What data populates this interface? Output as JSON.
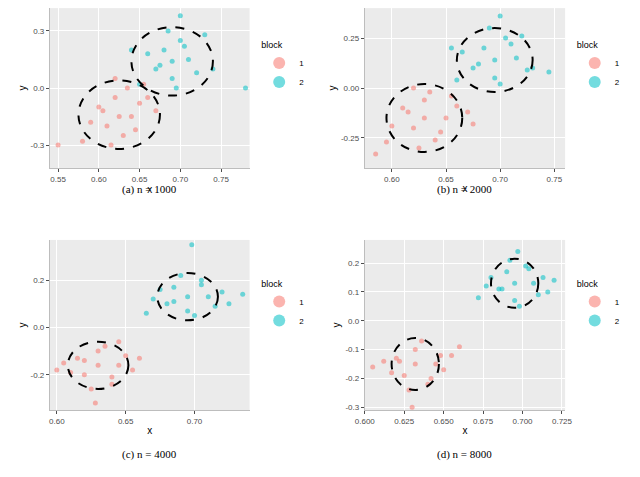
{
  "chart_data": [
    {
      "type": "scatter",
      "title": "(a) n = 1000",
      "x_label": "x",
      "y_label": "y",
      "legend_title": "block",
      "legend": "right",
      "grid": true,
      "xlim": [
        0.54,
        0.785
      ],
      "xticks": [
        0.55,
        {
          "value": 0.6,
          "label": "0.60"
        },
        0.65,
        {
          "value": 0.7,
          "label": "0.70"
        },
        0.75
      ],
      "ylim": [
        -0.42,
        0.42
      ],
      "yticks": [
        -0.3,
        {
          "value": 0,
          "label": "0.0"
        },
        0.3
      ],
      "series": [
        {
          "name": "1",
          "color": "#F8766D",
          "x": [
            0.6,
            0.61,
            0.62,
            0.63,
            0.64,
            0.65,
            0.59,
            0.615,
            0.635,
            0.645,
            0.605,
            0.625,
            0.655,
            0.58,
            0.66,
            0.62,
            0.55,
            0.67
          ],
          "y": [
            -0.1,
            -0.2,
            -0.05,
            -0.25,
            -0.15,
            -0.08,
            -0.18,
            -0.3,
            0.0,
            -0.22,
            -0.12,
            -0.15,
            0.02,
            -0.28,
            -0.05,
            0.05,
            -0.3,
            -0.12
          ]
        },
        {
          "name": "2",
          "color": "#00BFC4",
          "x": [
            0.67,
            0.68,
            0.69,
            0.7,
            0.71,
            0.72,
            0.66,
            0.685,
            0.695,
            0.705,
            0.675,
            0.69,
            0.73,
            0.65,
            0.74,
            0.7,
            0.78,
            0.64
          ],
          "y": [
            0.1,
            0.2,
            0.05,
            0.25,
            0.15,
            0.08,
            0.18,
            0.3,
            0.0,
            0.22,
            0.12,
            0.14,
            0.28,
            0.02,
            0.1,
            0.38,
            0.0,
            0.2
          ]
        }
      ],
      "ellipses": [
        {
          "cx": 0.625,
          "cy": -0.14,
          "rx": 0.05,
          "ry": 0.18,
          "line_style": "dash"
        },
        {
          "cx": 0.69,
          "cy": 0.14,
          "rx": 0.05,
          "ry": 0.18,
          "line_style": "dash"
        }
      ]
    },
    {
      "type": "scatter",
      "title": "(b) n = 2000",
      "x_label": "x",
      "y_label": "y",
      "legend_title": "block",
      "legend": "right",
      "grid": true,
      "xlim": [
        0.575,
        0.76
      ],
      "xticks": [
        {
          "value": 0.6,
          "label": "0.60"
        },
        0.65,
        {
          "value": 0.7,
          "label": "0.70"
        },
        0.75
      ],
      "ylim": [
        -0.4,
        0.4
      ],
      "yticks": [
        -0.25,
        {
          "value": 0,
          "label": "0.00"
        },
        0.25
      ],
      "series": [
        {
          "name": "1",
          "color": "#F8766D",
          "x": [
            0.61,
            0.62,
            0.63,
            0.64,
            0.65,
            0.66,
            0.6,
            0.625,
            0.635,
            0.645,
            0.615,
            0.63,
            0.655,
            0.595,
            0.67,
            0.62,
            0.585,
            0.675
          ],
          "y": [
            -0.1,
            -0.2,
            -0.06,
            -0.26,
            -0.15,
            -0.09,
            -0.19,
            -0.3,
            -0.02,
            -0.22,
            -0.12,
            -0.15,
            -0.04,
            -0.27,
            -0.12,
            0.0,
            -0.33,
            -0.18
          ]
        },
        {
          "name": "2",
          "color": "#00BFC4",
          "x": [
            0.675,
            0.685,
            0.695,
            0.705,
            0.715,
            0.725,
            0.665,
            0.69,
            0.7,
            0.71,
            0.68,
            0.695,
            0.72,
            0.66,
            0.73,
            0.7,
            0.745,
            0.655
          ],
          "y": [
            0.1,
            0.2,
            0.05,
            0.25,
            0.15,
            0.09,
            0.18,
            0.3,
            0.02,
            0.22,
            0.12,
            0.14,
            0.26,
            0.04,
            0.1,
            0.36,
            0.08,
            0.2
          ]
        }
      ],
      "ellipses": [
        {
          "cx": 0.63,
          "cy": -0.15,
          "rx": 0.035,
          "ry": 0.17,
          "line_style": "dash"
        },
        {
          "cx": 0.695,
          "cy": 0.14,
          "rx": 0.035,
          "ry": 0.16,
          "line_style": "dash"
        }
      ]
    },
    {
      "type": "scatter",
      "title": "(c) n = 4000",
      "x_label": "x",
      "y_label": "y",
      "legend_title": "block",
      "legend": "right",
      "grid": true,
      "xlim": [
        0.595,
        0.74
      ],
      "xticks": [
        {
          "value": 0.6,
          "label": "0.60"
        },
        0.65,
        {
          "value": 0.7,
          "label": "0.70"
        }
      ],
      "ylim": [
        -0.35,
        0.37
      ],
      "yticks": [
        -0.2,
        {
          "value": 0,
          "label": "0.0"
        },
        0.2
      ],
      "series": [
        {
          "name": "1",
          "color": "#F8766D",
          "x": [
            0.615,
            0.62,
            0.63,
            0.64,
            0.645,
            0.65,
            0.61,
            0.625,
            0.635,
            0.64,
            0.62,
            0.63,
            0.655,
            0.605,
            0.66,
            0.628,
            0.6,
            0.645
          ],
          "y": [
            -0.13,
            -0.2,
            -0.1,
            -0.24,
            -0.16,
            -0.12,
            -0.19,
            -0.26,
            -0.08,
            -0.21,
            -0.14,
            -0.16,
            -0.18,
            -0.15,
            -0.13,
            -0.32,
            -0.18,
            -0.06
          ]
        },
        {
          "name": "2",
          "color": "#00BFC4",
          "x": [
            0.68,
            0.685,
            0.695,
            0.705,
            0.71,
            0.715,
            0.675,
            0.69,
            0.7,
            0.705,
            0.685,
            0.695,
            0.72,
            0.67,
            0.725,
            0.698,
            0.735,
            0.665
          ],
          "y": [
            0.1,
            0.17,
            0.07,
            0.2,
            0.13,
            0.09,
            0.16,
            0.22,
            0.05,
            0.18,
            0.11,
            0.13,
            0.15,
            0.12,
            0.1,
            0.35,
            0.14,
            0.06
          ]
        }
      ],
      "ellipses": [
        {
          "cx": 0.63,
          "cy": -0.16,
          "rx": 0.022,
          "ry": 0.1,
          "line_style": "dash"
        },
        {
          "cx": 0.695,
          "cy": 0.13,
          "rx": 0.022,
          "ry": 0.1,
          "line_style": "dash"
        }
      ]
    },
    {
      "type": "scatter",
      "title": "(d) n = 8000",
      "x_label": "x",
      "y_label": "y",
      "legend_title": "block",
      "legend": "right",
      "grid": true,
      "xlim": [
        0.6,
        0.727
      ],
      "xticks": [
        {
          "value": 0.6,
          "label": "0.600"
        },
        0.625,
        {
          "value": 0.65,
          "label": "0.650"
        },
        0.675,
        {
          "value": 0.7,
          "label": "0.700"
        },
        0.725
      ],
      "ylim": [
        -0.31,
        0.28
      ],
      "yticks": [
        -0.3,
        -0.2,
        -0.1,
        {
          "value": 0,
          "label": "0.0"
        },
        0.1,
        0.2
      ],
      "series": [
        {
          "name": "1",
          "color": "#F8766D",
          "x": [
            0.62,
            0.625,
            0.632,
            0.64,
            0.645,
            0.648,
            0.617,
            0.628,
            0.636,
            0.642,
            0.622,
            0.632,
            0.65,
            0.612,
            0.655,
            0.63,
            0.605,
            0.66
          ],
          "y": [
            -0.13,
            -0.19,
            -0.1,
            -0.22,
            -0.15,
            -0.12,
            -0.18,
            -0.24,
            -0.07,
            -0.2,
            -0.14,
            -0.15,
            -0.17,
            -0.14,
            -0.12,
            -0.3,
            -0.16,
            -0.09
          ]
        },
        {
          "name": "2",
          "color": "#00BFC4",
          "x": [
            0.685,
            0.69,
            0.695,
            0.702,
            0.707,
            0.71,
            0.68,
            0.692,
            0.698,
            0.704,
            0.687,
            0.695,
            0.713,
            0.677,
            0.716,
            0.697,
            0.72,
            0.672
          ],
          "y": [
            0.11,
            0.17,
            0.07,
            0.19,
            0.13,
            0.09,
            0.15,
            0.21,
            0.05,
            0.18,
            0.11,
            0.13,
            0.15,
            0.12,
            0.1,
            0.24,
            0.14,
            0.08
          ]
        }
      ],
      "ellipses": [
        {
          "cx": 0.632,
          "cy": -0.15,
          "rx": 0.015,
          "ry": 0.09,
          "line_style": "dash"
        },
        {
          "cx": 0.695,
          "cy": 0.13,
          "rx": 0.015,
          "ry": 0.085,
          "line_style": "dash"
        }
      ]
    }
  ]
}
